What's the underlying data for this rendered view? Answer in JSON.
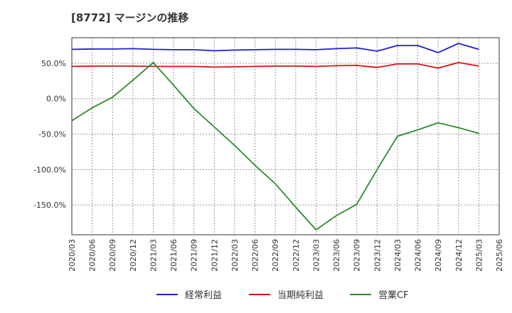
{
  "chart_data": {
    "type": "line",
    "title": "[8772]  マージンの推移",
    "x": [
      "2020/03",
      "2020/06",
      "2020/09",
      "2020/12",
      "2021/03",
      "2021/06",
      "2021/09",
      "2021/12",
      "2022/03",
      "2022/06",
      "2022/09",
      "2022/12",
      "2023/03",
      "2023/06",
      "2023/09",
      "2023/12",
      "2024/03",
      "2024/06",
      "2024/09",
      "2024/12",
      "2025/03"
    ],
    "x_ticks": [
      "2020/03",
      "2020/06",
      "2020/09",
      "2020/12",
      "2021/03",
      "2021/06",
      "2021/09",
      "2021/12",
      "2022/03",
      "2022/06",
      "2022/09",
      "2022/12",
      "2023/03",
      "2023/06",
      "2023/09",
      "2023/12",
      "2024/03",
      "2024/06",
      "2024/09",
      "2024/12",
      "2025/03",
      "2025/06"
    ],
    "y_ticks": [
      50,
      0,
      -50,
      -100,
      -150
    ],
    "y_tick_labels": [
      "50.0%",
      "0.0%",
      "-50.0%",
      "-100.0%",
      "-150.0%"
    ],
    "ylim": [
      -192,
      86
    ],
    "grid": true,
    "legend_position": "bottom",
    "series": [
      {
        "name": "経常利益",
        "color": "#1f1fd6",
        "values": [
          69.5,
          70.0,
          70.0,
          70.5,
          69.5,
          69.0,
          69.0,
          67.5,
          68.5,
          69.0,
          69.5,
          69.5,
          69.0,
          70.5,
          71.5,
          67.0,
          75.0,
          75.0,
          65.0,
          78.0,
          69.5
        ]
      },
      {
        "name": "当期純利益",
        "color": "#dd1111",
        "values": [
          45.5,
          46.0,
          46.0,
          46.0,
          45.5,
          45.5,
          45.5,
          44.5,
          45.0,
          45.5,
          46.0,
          46.0,
          45.5,
          46.5,
          47.0,
          44.0,
          49.0,
          49.0,
          43.0,
          51.0,
          46.0
        ]
      },
      {
        "name": "営業CF",
        "color": "#2e8b2e",
        "values": [
          -31.0,
          -13.0,
          2.0,
          26.0,
          51.0,
          19.0,
          -14.0,
          -40.0,
          -66.0,
          -94.0,
          -120.0,
          -153.0,
          -185.0,
          -165.0,
          -149.0,
          -100.0,
          -53.0,
          -44.0,
          -34.0,
          -41.0,
          -49.0
        ]
      }
    ]
  }
}
